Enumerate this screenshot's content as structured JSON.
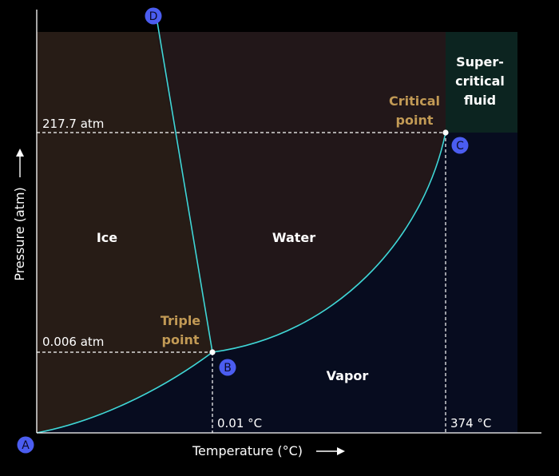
{
  "colors": {
    "background": "#000000",
    "ice": "#271c16",
    "water": "#221719",
    "vapor": "#070c1f",
    "supercritical": "#0c2420",
    "curve": "#3fd6d6",
    "accent_label": "#c29a55",
    "marker": "#4b5df0",
    "text": "#ffffff"
  },
  "axes": {
    "x_label": "Temperature (°C)",
    "y_label": "Pressure (atm)"
  },
  "regions": {
    "ice": "Ice",
    "water": "Water",
    "vapor": "Vapor",
    "supercritical": [
      "Super-",
      "critical",
      "fluid"
    ]
  },
  "points": {
    "triple": {
      "label": [
        "Triple",
        "point"
      ],
      "marker": "B"
    },
    "critical": {
      "label": [
        "Critical",
        "point"
      ],
      "marker": "C"
    },
    "origin": {
      "marker": "A"
    },
    "fusion_top": {
      "marker": "D"
    }
  },
  "reference_values": {
    "triple_pressure": "0.006 atm",
    "critical_pressure": "217.7 atm",
    "triple_temperature": "0.01 °C",
    "critical_temperature": "374 °C"
  }
}
